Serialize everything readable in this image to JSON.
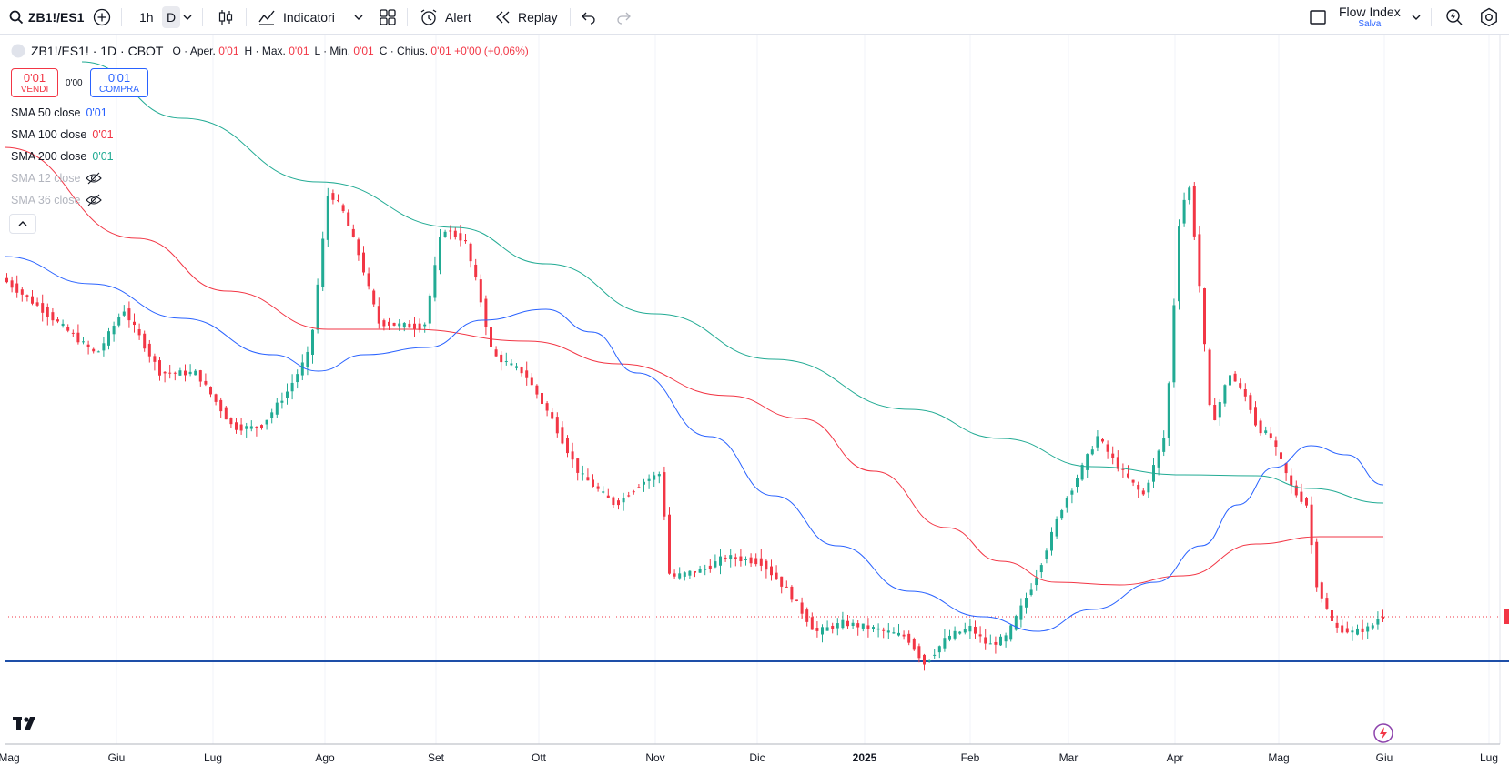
{
  "toolbar": {
    "symbol": "ZB1!/ES1",
    "interval_1h": "1h",
    "interval_d": "D",
    "indicators_label": "Indicatori",
    "alert_label": "Alert",
    "replay_label": "Replay",
    "layout_name": "Flow Index",
    "layout_status": "Salva"
  },
  "legend": {
    "symbol_line": "ZB1!/ES1! · 1D · CBOT",
    "open_label": "O · Aper.",
    "open_value": "0'01",
    "high_label": "H · Max.",
    "high_value": "0'01",
    "low_label": "L · Min.",
    "low_value": "0'01",
    "close_label": "C · Chius.",
    "close_value": "0'01",
    "change": "+0'00 (+0,06%)"
  },
  "trade": {
    "sell_price": "0'01",
    "sell_label": "VENDI",
    "spread": "0'00",
    "buy_price": "0'01",
    "buy_label": "COMPRA"
  },
  "indicators": [
    {
      "label": "SMA 50 close",
      "value": "0'01",
      "color": "#2962ff",
      "visible": true
    },
    {
      "label": "SMA 100 close",
      "value": "0'01",
      "color": "#f23645",
      "visible": true
    },
    {
      "label": "SMA 200 close",
      "value": "0'01",
      "color": "#22ab94",
      "visible": true
    },
    {
      "label": "SMA 12 close",
      "value": "",
      "color": "#b2b5be",
      "visible": false
    },
    {
      "label": "SMA 36 close",
      "value": "",
      "color": "#b2b5be",
      "visible": false
    }
  ],
  "x_axis_labels": [
    "Mag",
    "Giu",
    "Lug",
    "Ago",
    "Set",
    "Ott",
    "Nov",
    "Dic",
    "2025",
    "Feb",
    "Mar",
    "Apr",
    "Mag",
    "Giu",
    "Lug"
  ],
  "colors": {
    "up": "#22ab94",
    "down": "#f23645",
    "sma50": "#2962ff",
    "sma100": "#f23645",
    "sma200": "#22ab94",
    "hline": "#1e4fa8"
  },
  "icons": [
    "search-icon",
    "plus-circle-icon",
    "chevron-down-icon",
    "candles-icon",
    "indicators-icon",
    "templates-icon",
    "alarm-clock-icon",
    "replay-icon",
    "undo-icon",
    "redo-icon",
    "checkbox-icon",
    "zoom-icon",
    "settings-icon",
    "tradingview-logo-icon",
    "flash-icon"
  ]
}
